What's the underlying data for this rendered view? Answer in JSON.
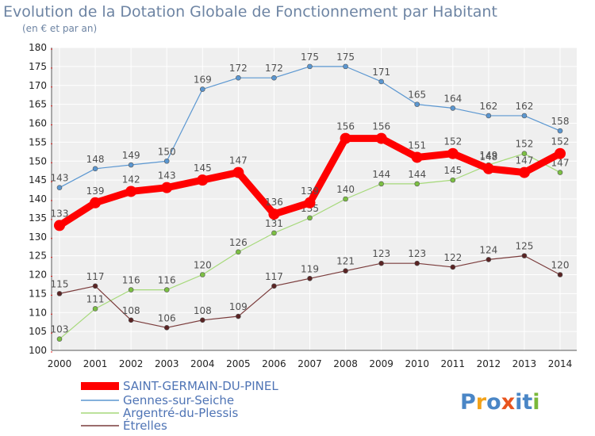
{
  "title": "Evolution de la Dotation Globale de Fonctionnement par Habitant",
  "subtitle": "(en € et par an)",
  "logo": [
    "P",
    "r",
    "o",
    "x",
    "i",
    "t",
    "i"
  ],
  "colors": {
    "plot_bg": "#efefef",
    "grid": "#ffffff",
    "border": "#5a5a5a",
    "title": "#6d84a3",
    "legend_text": "#4f74b5",
    "logo": [
      "#4a86c6",
      "#f2a21a",
      "#4a86c6",
      "#e8541e",
      "#4a86c6",
      "#4a86c6",
      "#7ab83a"
    ]
  },
  "chart_data": {
    "type": "line",
    "x": [
      2000,
      2001,
      2002,
      2003,
      2004,
      2005,
      2006,
      2007,
      2008,
      2009,
      2010,
      2011,
      2012,
      2013,
      2014
    ],
    "ylim": [
      100,
      180
    ],
    "yticks": [
      100,
      105,
      110,
      115,
      120,
      125,
      130,
      135,
      140,
      145,
      150,
      155,
      160,
      165,
      170,
      175,
      180
    ],
    "grid": true,
    "legend_position": "bottom",
    "series": [
      {
        "name": "Gennes-sur-Seiche",
        "color": "#5b97d1",
        "marker_fill": "#5b97d1",
        "width": 1.2,
        "marker_r": 3,
        "values": [
          143,
          148,
          149,
          150,
          169,
          172,
          172,
          175,
          175,
          171,
          165,
          164,
          162,
          162,
          158
        ]
      },
      {
        "name": "Argentré-du-Plessis",
        "color": "#a6d97a",
        "marker_fill": "#7cc043",
        "width": 1.2,
        "marker_r": 3,
        "values": [
          103,
          111,
          116,
          116,
          120,
          126,
          131,
          135,
          140,
          144,
          144,
          145,
          149,
          152,
          147
        ]
      },
      {
        "name": "Étrelles",
        "color": "#7a3b3b",
        "marker_fill": "#5a2424",
        "width": 1.2,
        "marker_r": 3,
        "values": [
          115,
          117,
          108,
          106,
          108,
          109,
          117,
          119,
          121,
          123,
          123,
          122,
          124,
          125,
          120
        ]
      },
      {
        "name": "SAINT-GERMAIN-DU-PINEL",
        "color": "#ff0000",
        "marker_fill": "#ff0000",
        "width": 9,
        "marker_r": 7,
        "values": [
          133,
          139,
          142,
          143,
          145,
          147,
          136,
          139,
          156,
          156,
          151,
          152,
          148,
          147,
          152
        ]
      }
    ],
    "legend": [
      "SAINT-GERMAIN-DU-PINEL",
      "Gennes-sur-Seiche",
      "Argentré-du-Plessis",
      "Étrelles"
    ]
  }
}
